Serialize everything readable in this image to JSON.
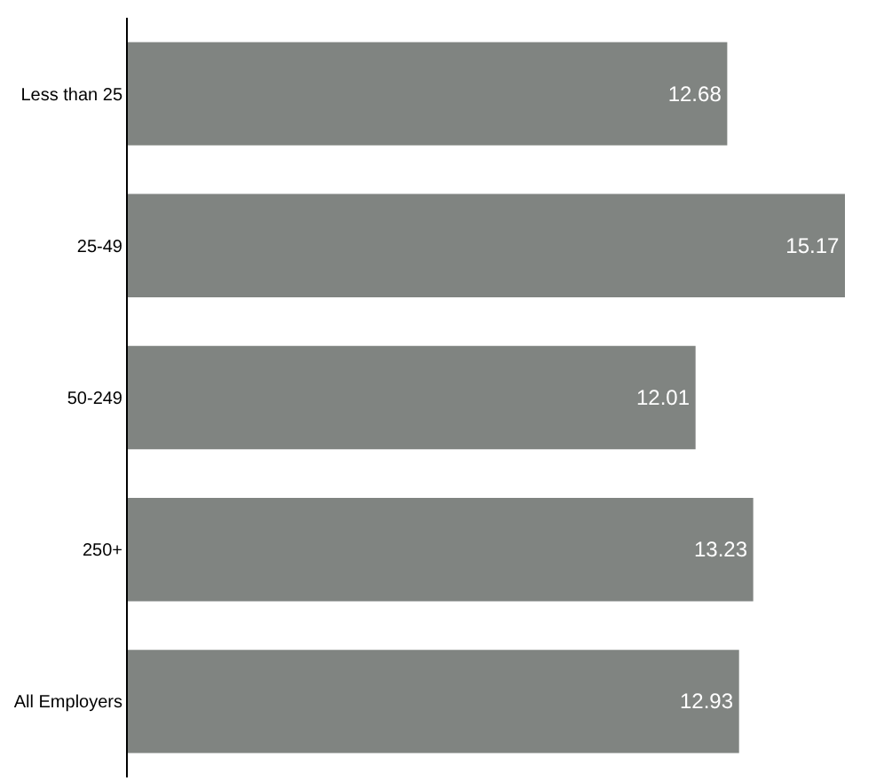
{
  "chart_data": {
    "type": "bar",
    "orientation": "horizontal",
    "categories": [
      "Less than 25",
      "25-49",
      "50-249",
      "250+",
      "All Employers"
    ],
    "values": [
      12.68,
      15.17,
      12.01,
      13.23,
      12.93
    ],
    "color": "#808481",
    "data_labels": true
  }
}
